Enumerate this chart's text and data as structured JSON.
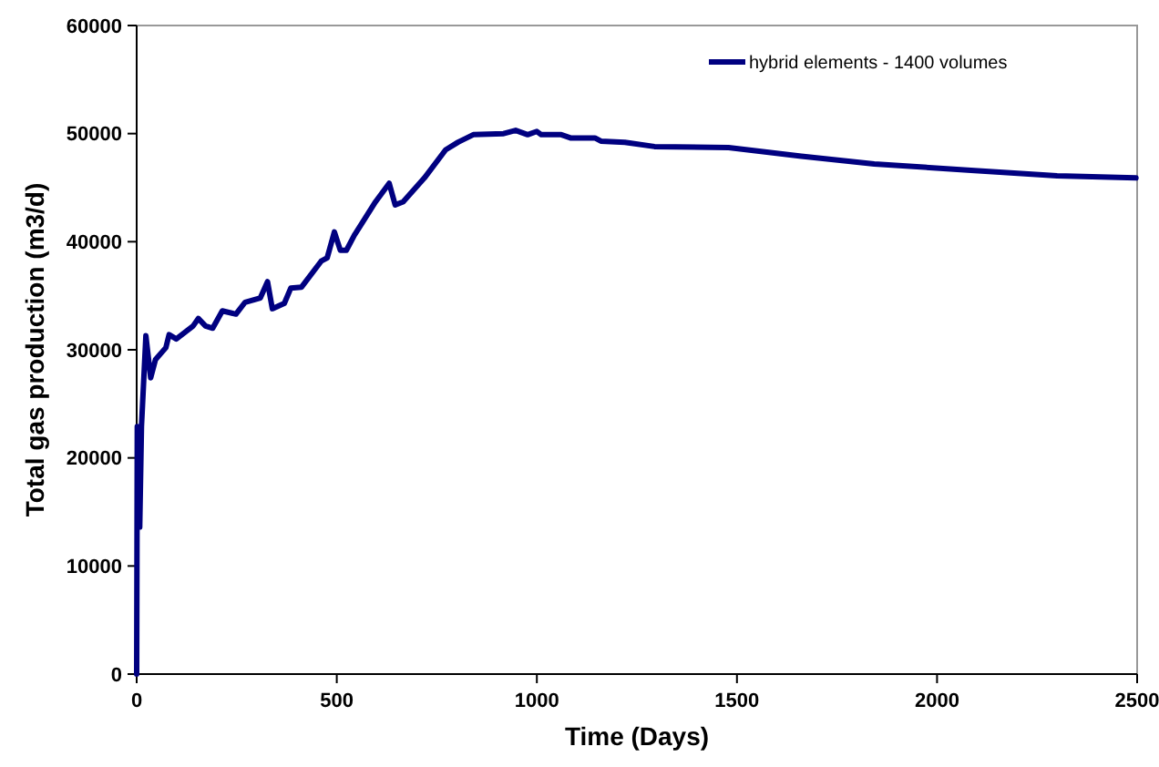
{
  "chart_data": {
    "type": "line",
    "xlabel": "Time (Days)",
    "ylabel": "Total gas production (m3/d)",
    "xlim": [
      0,
      2500
    ],
    "xticks": [
      0,
      500,
      1000,
      1500,
      2000,
      2500
    ],
    "ylim": [
      0,
      60000
    ],
    "yticks": [
      0,
      10000,
      20000,
      30000,
      40000,
      50000,
      60000
    ],
    "grid": false,
    "legend": "top right",
    "marker": "none",
    "line_style": "solid",
    "series": [
      {
        "name": "hybrid elements - 1400 volumes",
        "color": "#000080",
        "x": [
          0,
          1.5,
          7.6,
          12,
          23,
          35,
          47,
          73,
          81,
          99,
          141,
          154,
          172,
          190,
          214,
          248,
          271,
          309,
          327,
          339,
          369,
          385,
          412,
          461,
          476,
          494,
          509,
          524,
          544,
          597,
          631,
          646,
          666,
          719,
          772,
          803,
          841,
          917,
          947,
          977,
          1000,
          1011,
          1061,
          1084,
          1145,
          1160,
          1220,
          1294,
          1479,
          1661,
          1843,
          2085,
          2300,
          2497
        ],
        "values": [
          0,
          22900,
          13600,
          22900,
          31300,
          27400,
          29100,
          30200,
          31400,
          31000,
          32200,
          32900,
          32200,
          32000,
          33600,
          33300,
          34400,
          34800,
          36300,
          33800,
          34300,
          35700,
          35800,
          38200,
          38500,
          40900,
          39200,
          39200,
          40600,
          43700,
          45400,
          43400,
          43700,
          45900,
          48500,
          49200,
          49900,
          50000,
          50300,
          49900,
          50200,
          49900,
          49900,
          49600,
          49600,
          49300,
          49200,
          48800,
          48700,
          47900,
          47200,
          46600,
          46100,
          45900
        ]
      }
    ]
  }
}
